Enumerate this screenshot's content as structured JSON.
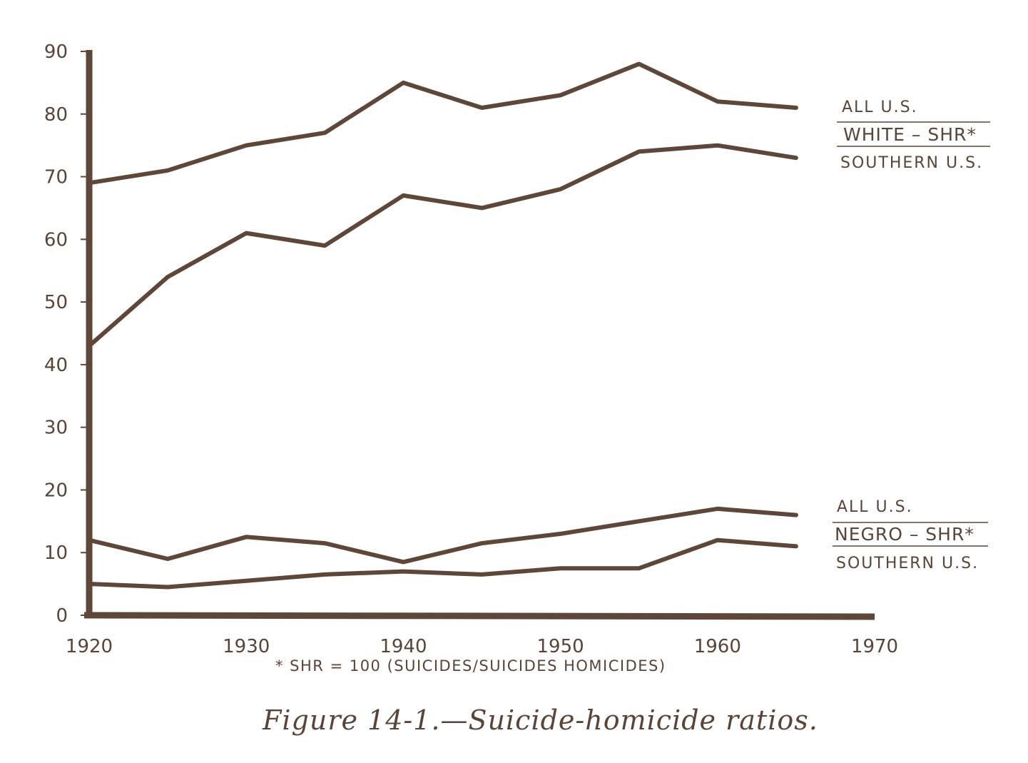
{
  "chart_data": {
    "type": "line",
    "x": [
      1920,
      1925,
      1930,
      1935,
      1940,
      1945,
      1950,
      1955,
      1960,
      1965
    ],
    "xlim": [
      1920,
      1970
    ],
    "ylim": [
      0,
      90
    ],
    "x_ticks": [
      "1920",
      "1930",
      "1940",
      "1950",
      "1960",
      "1970"
    ],
    "y_ticks": [
      "0",
      "10",
      "20",
      "30",
      "40",
      "50",
      "60",
      "70",
      "80",
      "90"
    ],
    "series": [
      {
        "group": "white",
        "values": [
          69,
          71,
          75,
          77,
          85,
          81,
          83,
          88,
          82,
          81
        ]
      },
      {
        "group": "white",
        "values": [
          43,
          54,
          61,
          59,
          67,
          65,
          68,
          74,
          75,
          73
        ]
      },
      {
        "group": "negro",
        "values": [
          12,
          9,
          12.5,
          11.5,
          8.5,
          11.5,
          13,
          15,
          17,
          16
        ]
      },
      {
        "group": "negro",
        "values": [
          5,
          4.5,
          5.5,
          6.5,
          7,
          6.5,
          7.5,
          7.5,
          12,
          11
        ]
      }
    ],
    "legend": {
      "white": {
        "top": "ALL U.S.",
        "main": "WHITE – SHR*",
        "bottom": "SOUTHERN U.S."
      },
      "negro": {
        "top": "ALL U.S.",
        "main": "NEGRO – SHR*",
        "bottom": "SOUTHERN U.S."
      }
    },
    "footnote": "* SHR = 100 (SUICIDES/SUICIDES HOMICIDES)",
    "caption": "Figure 14-1.—Suicide-homicide ratios.",
    "line_color": "#5e4738",
    "text_color": "#5a4438"
  }
}
